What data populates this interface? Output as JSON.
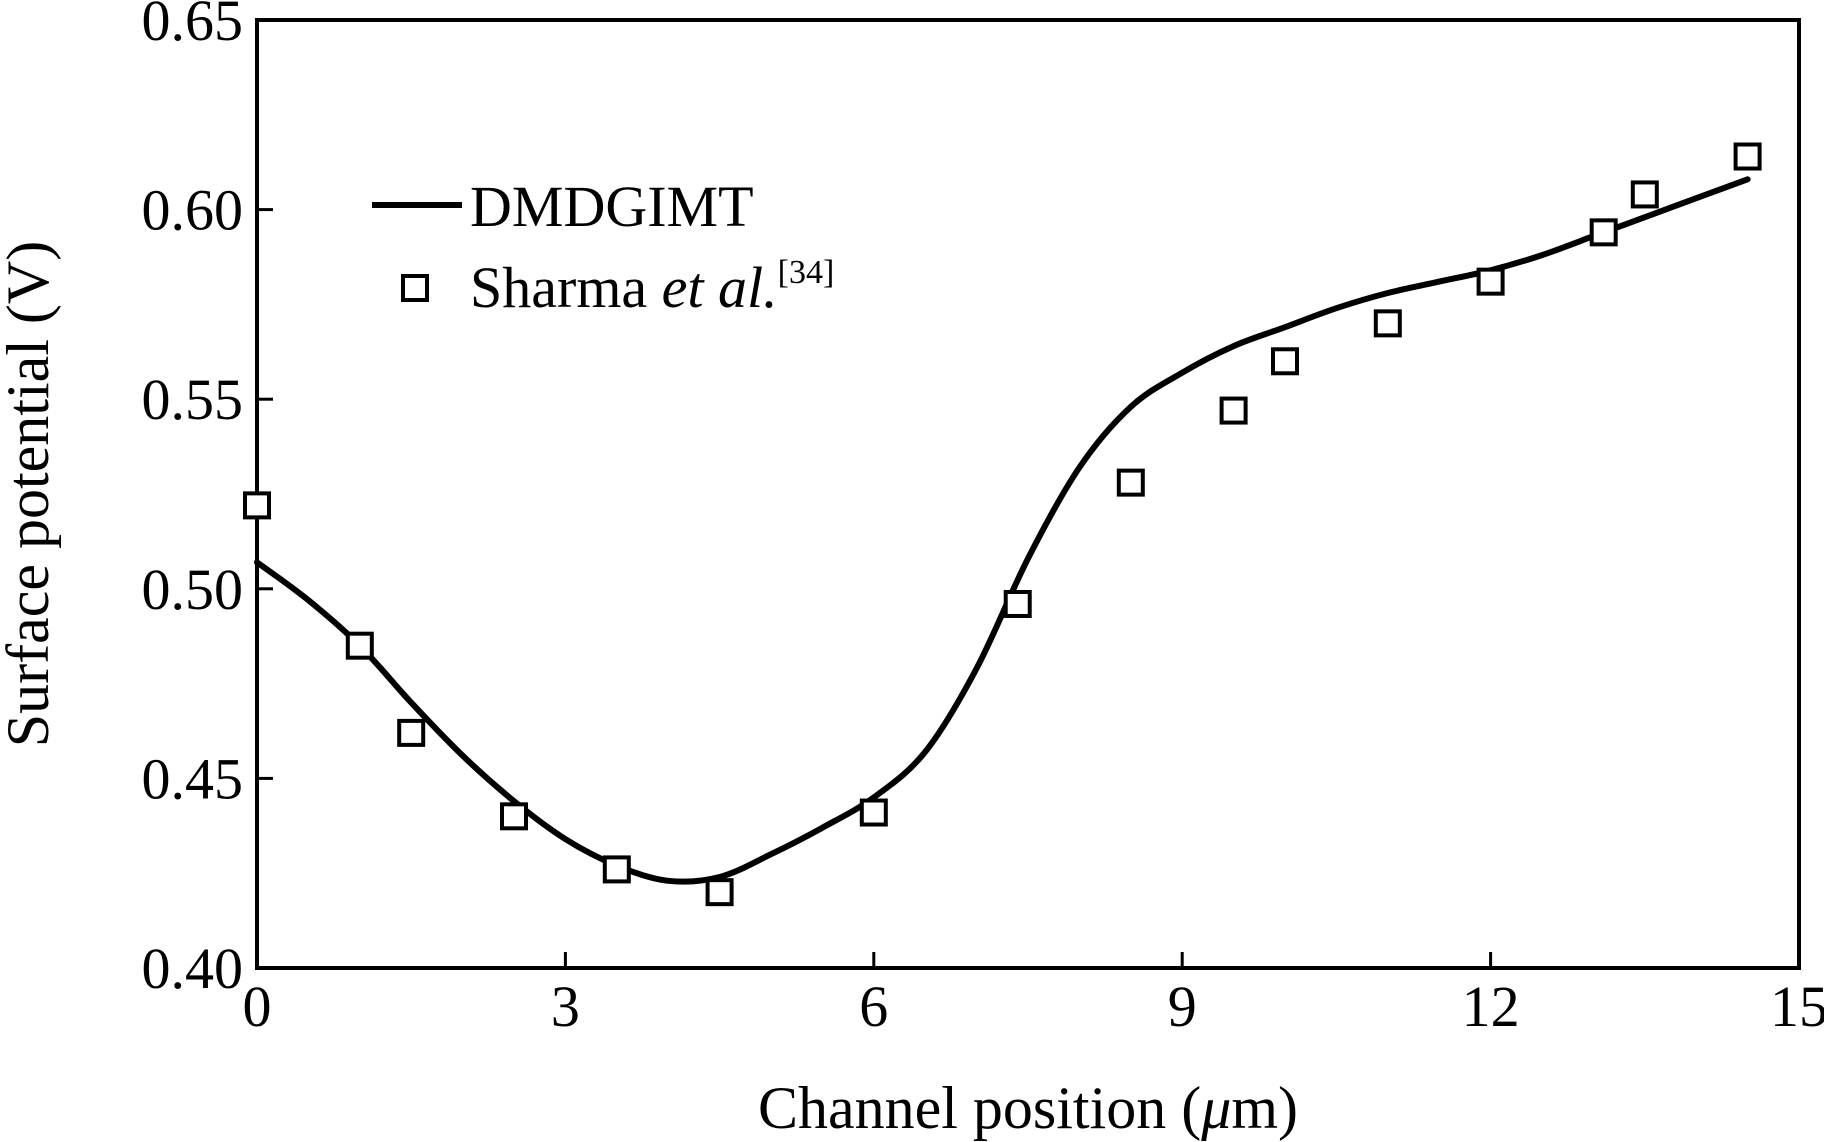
{
  "chart_data": {
    "type": "line",
    "xlabel_parts": [
      "Channel position (",
      "μ",
      "m)"
    ],
    "ylabel": "Surface potential (V)",
    "xlim": [
      0,
      15
    ],
    "ylim": [
      0.4,
      0.65
    ],
    "xticks": [
      0,
      3,
      6,
      9,
      12,
      15
    ],
    "xtick_labels": [
      "0",
      "3",
      "6",
      "9",
      "12",
      "15"
    ],
    "yticks": [
      0.4,
      0.45,
      0.5,
      0.55,
      0.6,
      0.65
    ],
    "ytick_labels": [
      "0.40",
      "0.45",
      "0.50",
      "0.55",
      "0.60",
      "0.65"
    ],
    "grid": false,
    "legend_position": "top-left",
    "series": [
      {
        "name": "DMDGIMT",
        "style": "line",
        "color": "#000000",
        "x": [
          0,
          0.5,
          1.0,
          1.5,
          2.0,
          2.5,
          3.0,
          3.5,
          4.0,
          4.5,
          5.0,
          5.5,
          6.0,
          6.5,
          7.0,
          7.5,
          8.0,
          8.5,
          9.0,
          9.5,
          10.0,
          10.5,
          11.0,
          11.5,
          12.0,
          12.5,
          13.0,
          13.5,
          14.0,
          14.5
        ],
        "y": [
          0.507,
          0.497,
          0.485,
          0.47,
          0.456,
          0.444,
          0.434,
          0.427,
          0.423,
          0.424,
          0.43,
          0.437,
          0.445,
          0.457,
          0.479,
          0.508,
          0.532,
          0.548,
          0.557,
          0.564,
          0.569,
          0.574,
          0.578,
          0.581,
          0.584,
          0.588,
          0.593,
          0.598,
          0.603,
          0.608
        ]
      },
      {
        "name_parts": [
          "Sharma ",
          "et al.",
          "[34]"
        ],
        "style": "markers",
        "marker": "square",
        "color": "#000000",
        "x": [
          0,
          1.0,
          1.5,
          2.5,
          3.5,
          4.5,
          6.0,
          7.4,
          8.5,
          9.5,
          10.0,
          11.0,
          12.0,
          13.1,
          13.5,
          14.5
        ],
        "y": [
          0.522,
          0.485,
          0.462,
          0.44,
          0.426,
          0.42,
          0.441,
          0.496,
          0.528,
          0.547,
          0.56,
          0.57,
          0.581,
          0.594,
          0.604,
          0.614
        ]
      }
    ]
  }
}
